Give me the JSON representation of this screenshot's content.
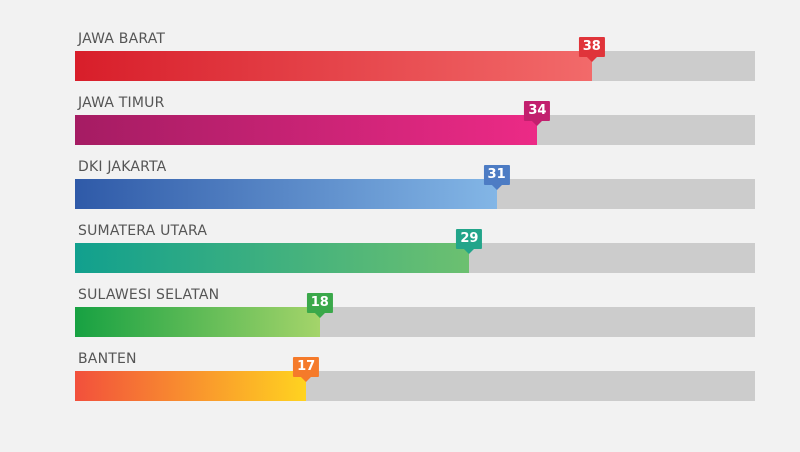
{
  "chart_data": {
    "type": "bar",
    "orientation": "horizontal",
    "title": "",
    "xlabel": "",
    "ylabel": "",
    "xlim": [
      0,
      50
    ],
    "grid": false,
    "legend": "none",
    "categories": [
      "JAWA BARAT",
      "JAWA TIMUR",
      "DKI JAKARTA",
      "SUMATERA UTARA",
      "SULAWESI SELATAN",
      "BANTEN"
    ],
    "values": [
      38,
      34,
      31,
      29,
      18,
      17
    ],
    "data_labels": [
      "38",
      "34",
      "31",
      "29",
      "18",
      "17"
    ],
    "colors": [
      {
        "start": "#d81e2a",
        "end": "#f26a6a",
        "badge": "#e0343a"
      },
      {
        "start": "#a51c63",
        "end": "#ec2a86",
        "badge": "#c21f6e"
      },
      {
        "start": "#2f5aa8",
        "end": "#83b6e6",
        "badge": "#4d7cc4"
      },
      {
        "start": "#11a08e",
        "end": "#6cc070",
        "badge": "#22a58a"
      },
      {
        "start": "#17a142",
        "end": "#a4d46a",
        "badge": "#3aa84a"
      },
      {
        "start": "#f2503c",
        "end": "#ffd320",
        "badge": "#f57a2a"
      }
    ],
    "track_color": "#cccccc"
  }
}
